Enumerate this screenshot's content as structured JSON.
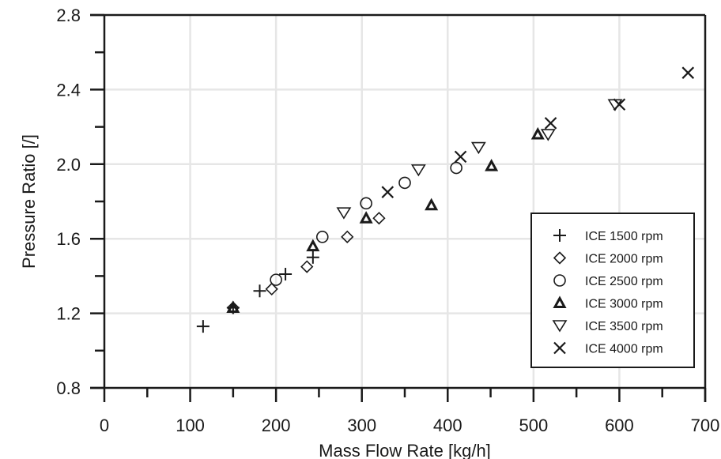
{
  "chart_data": {
    "type": "scatter",
    "title": "",
    "xlabel": "Mass Flow Rate [kg/h]",
    "ylabel": "Pressure Ratio [/]",
    "xlim": [
      0,
      700
    ],
    "ylim": [
      0.8,
      2.8
    ],
    "x_ticks": [
      0,
      100,
      200,
      300,
      400,
      500,
      600,
      700
    ],
    "x_tick_labels": [
      "0",
      "100",
      "200",
      "300",
      "400",
      "500",
      "600",
      "700"
    ],
    "x_minor_step": 50,
    "y_ticks": [
      0.8,
      1.2,
      1.6,
      2.0,
      2.4,
      2.8
    ],
    "y_tick_labels": [
      "0.8",
      "1.2",
      "1.6",
      "2.0",
      "2.4",
      "2.8"
    ],
    "y_minor_step": 0.2,
    "grid": true,
    "legend_position": "lower right",
    "series": [
      {
        "name": "ICE 1500 rpm",
        "marker": "plus",
        "x": [
          115,
          150,
          181,
          211,
          243
        ],
        "y": [
          1.13,
          1.23,
          1.32,
          1.41,
          1.5
        ]
      },
      {
        "name": "ICE 2000 rpm",
        "marker": "diamond",
        "x": [
          150,
          195,
          236,
          283,
          320
        ],
        "y": [
          1.23,
          1.33,
          1.45,
          1.61,
          1.71
        ]
      },
      {
        "name": "ICE 2500 rpm",
        "marker": "circle",
        "x": [
          200,
          254,
          305,
          350,
          410
        ],
        "y": [
          1.38,
          1.61,
          1.79,
          1.9,
          1.98
        ]
      },
      {
        "name": "ICE 3000 rpm",
        "marker": "triangle-up-bold",
        "x": [
          150,
          243,
          305,
          381,
          451,
          505
        ],
        "y": [
          1.23,
          1.56,
          1.71,
          1.78,
          1.99,
          2.16
        ]
      },
      {
        "name": "ICE 3500 rpm",
        "marker": "triangle-down",
        "x": [
          279,
          366,
          436,
          517,
          595
        ],
        "y": [
          1.74,
          1.97,
          2.09,
          2.16,
          2.32
        ]
      },
      {
        "name": "ICE 4000 rpm",
        "marker": "x",
        "x": [
          330,
          415,
          520,
          600,
          680
        ],
        "y": [
          1.85,
          2.04,
          2.22,
          2.32,
          2.49
        ]
      }
    ]
  },
  "colors": {
    "axis": "#1a1a1a",
    "grid": "#e6e6e6",
    "marker": "#1a1a1a",
    "background": "#ffffff"
  }
}
